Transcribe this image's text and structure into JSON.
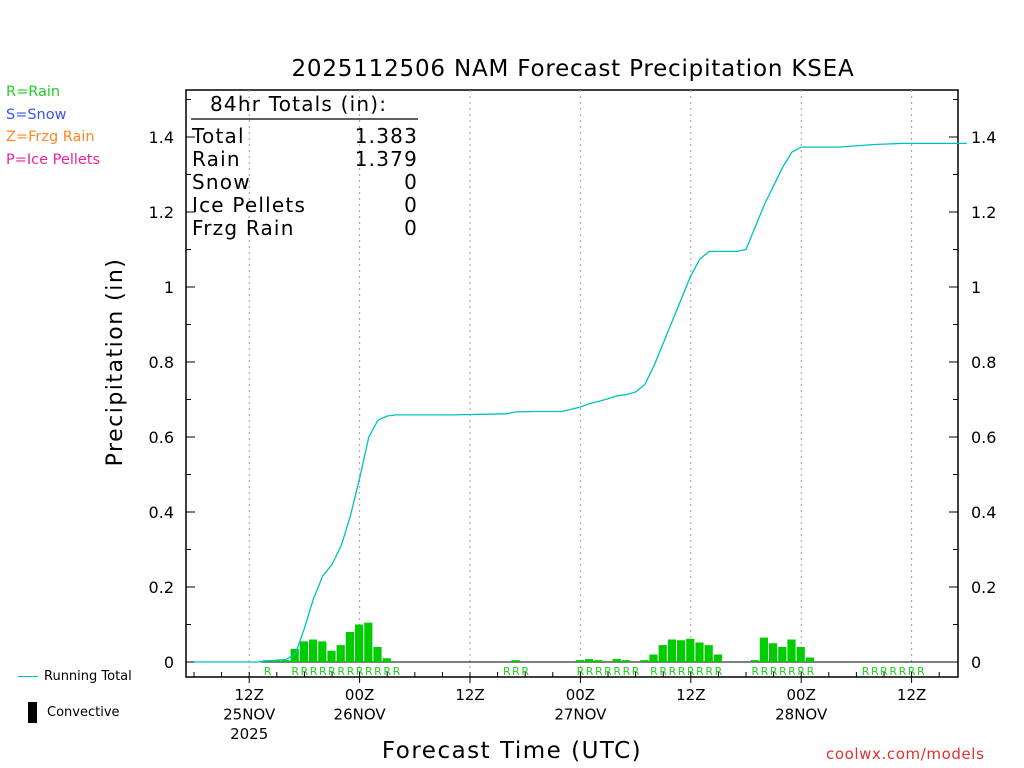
{
  "title": "2025112506 NAM Forecast Precipitation KSEA",
  "ylabel": "Precipitation (in)",
  "xlabel": "Forecast Time (UTC)",
  "credit": "coolwx.com/models",
  "type_legend": [
    {
      "text": "R=Rain",
      "color": "#22cc22"
    },
    {
      "text": "S=Snow",
      "color": "#3355ee"
    },
    {
      "text": "Z=Frzg Rain",
      "color": "#ff8822"
    },
    {
      "text": "P=Ice Pellets",
      "color": "#ee2299"
    }
  ],
  "bottom_legend": {
    "running_total": "Running Total",
    "convective": "Convective"
  },
  "totals": {
    "header": "84hr Totals (in):",
    "rows": [
      {
        "label": "Total",
        "value": "1.383"
      },
      {
        "label": "Rain",
        "value": "1.379"
      },
      {
        "label": "Snow",
        "value": "0"
      },
      {
        "label": "Ice Pellets",
        "value": "0"
      },
      {
        "label": "Frzg Rain",
        "value": "0"
      }
    ]
  },
  "colors": {
    "running_total": "#00c0c0",
    "bars": "#00cc00",
    "rain_letters": "#22cc22"
  },
  "chart_data": {
    "type": "bar",
    "x_unit": "forecast hour",
    "x_range": [
      0,
      84
    ],
    "ylim": [
      0,
      1.5
    ],
    "grid": "vertical dotted at 12-hour marks",
    "y_ticks": [
      "0",
      "0.2",
      "0.4",
      "0.6",
      "0.8",
      "1",
      "1.2",
      "1.4"
    ],
    "x_ticks": [
      {
        "hour": 6,
        "lines": [
          "12Z",
          "25NOV",
          "2025"
        ]
      },
      {
        "hour": 18,
        "lines": [
          "00Z",
          "26NOV"
        ]
      },
      {
        "hour": 30,
        "lines": [
          "12Z"
        ]
      },
      {
        "hour": 42,
        "lines": [
          "00Z",
          "27NOV"
        ]
      },
      {
        "hour": 54,
        "lines": [
          "12Z"
        ]
      },
      {
        "hour": 66,
        "lines": [
          "00Z",
          "28NOV"
        ]
      },
      {
        "hour": 78,
        "lines": [
          "12Z"
        ]
      }
    ],
    "series": [
      {
        "name": "Running Total",
        "kind": "line",
        "points": [
          [
            0,
            0
          ],
          [
            7,
            0
          ],
          [
            8,
            0.003
          ],
          [
            9,
            0.005
          ],
          [
            10,
            0.007
          ],
          [
            11,
            0.02
          ],
          [
            12,
            0.09
          ],
          [
            13,
            0.17
          ],
          [
            14,
            0.23
          ],
          [
            15,
            0.26
          ],
          [
            16,
            0.31
          ],
          [
            17,
            0.39
          ],
          [
            18,
            0.49
          ],
          [
            19,
            0.6
          ],
          [
            20,
            0.645
          ],
          [
            21,
            0.656
          ],
          [
            22,
            0.659
          ],
          [
            28,
            0.659
          ],
          [
            34,
            0.662
          ],
          [
            35,
            0.667
          ],
          [
            37,
            0.668
          ],
          [
            40,
            0.668
          ],
          [
            41,
            0.674
          ],
          [
            42,
            0.68
          ],
          [
            43,
            0.689
          ],
          [
            44,
            0.695
          ],
          [
            45,
            0.702
          ],
          [
            46,
            0.71
          ],
          [
            47,
            0.713
          ],
          [
            48,
            0.72
          ],
          [
            49,
            0.74
          ],
          [
            50,
            0.79
          ],
          [
            51,
            0.85
          ],
          [
            52,
            0.91
          ],
          [
            53,
            0.97
          ],
          [
            54,
            1.03
          ],
          [
            55,
            1.075
          ],
          [
            56,
            1.095
          ],
          [
            59,
            1.095
          ],
          [
            60,
            1.1
          ],
          [
            61,
            1.16
          ],
          [
            62,
            1.22
          ],
          [
            63,
            1.27
          ],
          [
            64,
            1.32
          ],
          [
            65,
            1.36
          ],
          [
            66,
            1.373
          ],
          [
            70,
            1.373
          ],
          [
            74,
            1.38
          ],
          [
            77,
            1.383
          ],
          [
            84,
            1.383
          ]
        ]
      },
      {
        "name": "Hourly Precipitation",
        "kind": "bar",
        "bars": [
          {
            "hour": 8,
            "value": 0.005
          },
          {
            "hour": 9,
            "value": 0.005
          },
          {
            "hour": 10,
            "value": 0.005
          },
          {
            "hour": 11,
            "value": 0.035
          },
          {
            "hour": 12,
            "value": 0.055
          },
          {
            "hour": 13,
            "value": 0.06
          },
          {
            "hour": 14,
            "value": 0.055
          },
          {
            "hour": 15,
            "value": 0.03
          },
          {
            "hour": 16,
            "value": 0.045
          },
          {
            "hour": 17,
            "value": 0.08
          },
          {
            "hour": 18,
            "value": 0.1
          },
          {
            "hour": 19,
            "value": 0.105
          },
          {
            "hour": 20,
            "value": 0.04
          },
          {
            "hour": 21,
            "value": 0.01
          },
          {
            "hour": 35,
            "value": 0.005
          },
          {
            "hour": 42,
            "value": 0.005
          },
          {
            "hour": 43,
            "value": 0.008
          },
          {
            "hour": 44,
            "value": 0.005
          },
          {
            "hour": 46,
            "value": 0.008
          },
          {
            "hour": 47,
            "value": 0.005
          },
          {
            "hour": 49,
            "value": 0.005
          },
          {
            "hour": 50,
            "value": 0.02
          },
          {
            "hour": 51,
            "value": 0.045
          },
          {
            "hour": 52,
            "value": 0.06
          },
          {
            "hour": 53,
            "value": 0.058
          },
          {
            "hour": 54,
            "value": 0.062
          },
          {
            "hour": 55,
            "value": 0.052
          },
          {
            "hour": 56,
            "value": 0.045
          },
          {
            "hour": 57,
            "value": 0.02
          },
          {
            "hour": 61,
            "value": 0.005
          },
          {
            "hour": 62,
            "value": 0.065
          },
          {
            "hour": 63,
            "value": 0.05
          },
          {
            "hour": 64,
            "value": 0.04
          },
          {
            "hour": 65,
            "value": 0.06
          },
          {
            "hour": 66,
            "value": 0.04
          },
          {
            "hour": 67,
            "value": 0.012
          }
        ]
      }
    ],
    "precip_type_labels": [
      {
        "hour": 8,
        "text": "R"
      },
      {
        "hour": 11,
        "text": "R"
      },
      {
        "hour": 12,
        "text": "R"
      },
      {
        "hour": 13,
        "text": "R"
      },
      {
        "hour": 14,
        "text": "R"
      },
      {
        "hour": 15,
        "text": "R"
      },
      {
        "hour": 16,
        "text": "R"
      },
      {
        "hour": 17,
        "text": "R"
      },
      {
        "hour": 18,
        "text": "R"
      },
      {
        "hour": 19,
        "text": "R"
      },
      {
        "hour": 20,
        "text": "R"
      },
      {
        "hour": 21,
        "text": "R"
      },
      {
        "hour": 22,
        "text": "R"
      },
      {
        "hour": 34,
        "text": "R"
      },
      {
        "hour": 35,
        "text": "R"
      },
      {
        "hour": 36,
        "text": "R"
      },
      {
        "hour": 42,
        "text": "R"
      },
      {
        "hour": 43,
        "text": "R"
      },
      {
        "hour": 44,
        "text": "R"
      },
      {
        "hour": 45,
        "text": "R"
      },
      {
        "hour": 46,
        "text": "R"
      },
      {
        "hour": 47,
        "text": "R"
      },
      {
        "hour": 48,
        "text": "R"
      },
      {
        "hour": 50,
        "text": "R"
      },
      {
        "hour": 51,
        "text": "R"
      },
      {
        "hour": 52,
        "text": "R"
      },
      {
        "hour": 53,
        "text": "R"
      },
      {
        "hour": 54,
        "text": "R"
      },
      {
        "hour": 55,
        "text": "R"
      },
      {
        "hour": 56,
        "text": "R"
      },
      {
        "hour": 57,
        "text": "R"
      },
      {
        "hour": 61,
        "text": "R"
      },
      {
        "hour": 62,
        "text": "R"
      },
      {
        "hour": 63,
        "text": "R"
      },
      {
        "hour": 64,
        "text": "R"
      },
      {
        "hour": 65,
        "text": "R"
      },
      {
        "hour": 66,
        "text": "R"
      },
      {
        "hour": 67,
        "text": "R"
      },
      {
        "hour": 73,
        "text": "R"
      },
      {
        "hour": 74,
        "text": "R"
      },
      {
        "hour": 75,
        "text": "R"
      },
      {
        "hour": 76,
        "text": "R"
      },
      {
        "hour": 77,
        "text": "R"
      },
      {
        "hour": 78,
        "text": "R"
      },
      {
        "hour": 79,
        "text": "R"
      }
    ]
  }
}
